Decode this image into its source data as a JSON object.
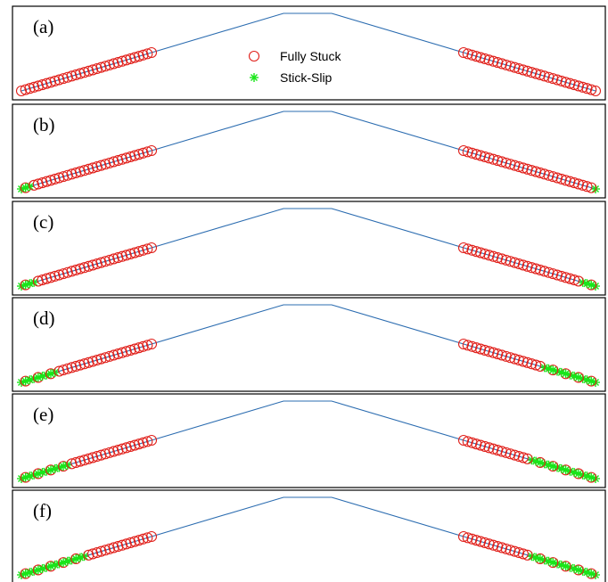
{
  "chart_data": {
    "type": "scatter",
    "legend": {
      "placement": "top-center",
      "entries": [
        {
          "label": "Fully Stuck",
          "marker": "circle",
          "color": "#e0201b"
        },
        {
          "label": "Stick-Slip",
          "marker": "asterisk",
          "color": "#19e619"
        }
      ]
    },
    "outline_color": "#2b6cb0",
    "panels": [
      {
        "label": "(a)",
        "slip_left": 0,
        "slip_right": 0
      },
      {
        "label": "(b)",
        "slip_left": 3,
        "slip_right": 1
      },
      {
        "label": "(c)",
        "slip_left": 4,
        "slip_right": 4
      },
      {
        "label": "(d)",
        "slip_left": 9,
        "slip_right": 13
      },
      {
        "label": "(e)",
        "slip_left": 12,
        "slip_right": 16
      },
      {
        "label": "(f)",
        "slip_left": 16,
        "slip_right": 16
      }
    ],
    "contact_points_per_side": 32
  }
}
